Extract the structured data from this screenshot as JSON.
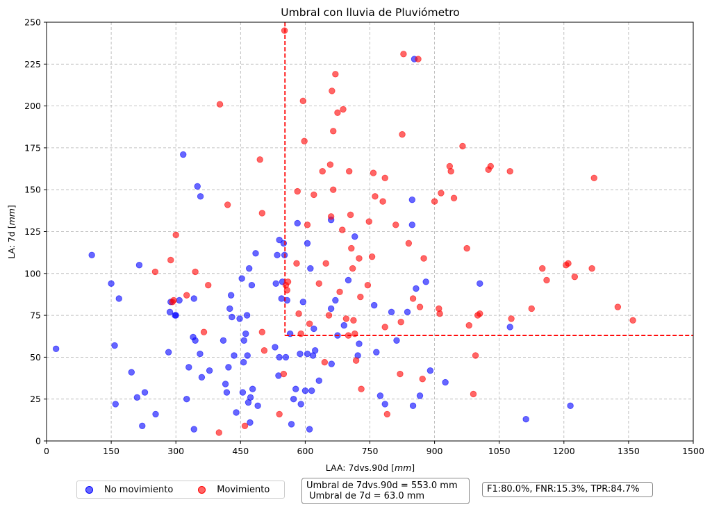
{
  "chart_data": {
    "type": "scatter",
    "title": "Umbral con lluvia de Pluviómetro",
    "xlabel": "LAA: 7dvs.90d [mm]",
    "ylabel": "LA: 7d [mm]",
    "xlim": [
      0,
      1500
    ],
    "ylim": [
      0,
      250
    ],
    "xticks": [
      0,
      150,
      300,
      450,
      600,
      750,
      900,
      1050,
      1200,
      1350,
      1500
    ],
    "yticks": [
      0,
      25,
      50,
      75,
      100,
      125,
      150,
      175,
      200,
      225,
      250
    ],
    "grid": true,
    "legend_position": "bottom-left",
    "thresholds": {
      "x": 553.0,
      "y": 63.0,
      "color": "#ff0000"
    },
    "series": [
      {
        "name": "No movimiento",
        "color": "#0000ff",
        "points": [
          [
            22,
            55
          ],
          [
            105,
            111
          ],
          [
            150,
            94
          ],
          [
            158,
            57
          ],
          [
            160,
            22
          ],
          [
            168,
            85
          ],
          [
            197,
            41
          ],
          [
            210,
            26
          ],
          [
            215,
            105
          ],
          [
            222,
            9
          ],
          [
            228,
            29
          ],
          [
            253,
            16
          ],
          [
            283,
            53
          ],
          [
            286,
            77
          ],
          [
            288,
            83
          ],
          [
            298,
            75
          ],
          [
            300,
            75
          ],
          [
            308,
            84
          ],
          [
            317,
            171
          ],
          [
            325,
            25
          ],
          [
            330,
            44
          ],
          [
            340,
            62
          ],
          [
            342,
            7
          ],
          [
            342,
            85
          ],
          [
            345,
            60
          ],
          [
            350,
            152
          ],
          [
            356,
            52
          ],
          [
            357,
            146
          ],
          [
            360,
            38
          ],
          [
            378,
            42
          ],
          [
            410,
            60
          ],
          [
            415,
            34
          ],
          [
            418,
            29
          ],
          [
            422,
            44
          ],
          [
            425,
            79
          ],
          [
            428,
            87
          ],
          [
            430,
            74
          ],
          [
            435,
            51
          ],
          [
            440,
            17
          ],
          [
            448,
            73
          ],
          [
            453,
            97
          ],
          [
            455,
            29
          ],
          [
            457,
            47
          ],
          [
            458,
            60
          ],
          [
            462,
            64
          ],
          [
            465,
            75
          ],
          [
            466,
            51
          ],
          [
            468,
            23
          ],
          [
            470,
            103
          ],
          [
            472,
            11
          ],
          [
            473,
            26
          ],
          [
            476,
            93
          ],
          [
            478,
            31
          ],
          [
            485,
            112
          ],
          [
            490,
            21
          ],
          [
            530,
            56
          ],
          [
            532,
            94
          ],
          [
            535,
            111
          ],
          [
            538,
            39
          ],
          [
            540,
            50
          ],
          [
            540,
            120
          ],
          [
            545,
            85
          ],
          [
            547,
            95
          ],
          [
            550,
            118
          ],
          [
            552,
            111
          ],
          [
            555,
            50
          ],
          [
            558,
            84
          ],
          [
            565,
            64
          ],
          [
            568,
            10
          ],
          [
            573,
            25
          ],
          [
            578,
            31
          ],
          [
            582,
            130
          ],
          [
            588,
            52
          ],
          [
            590,
            22
          ],
          [
            595,
            83
          ],
          [
            600,
            30
          ],
          [
            605,
            52
          ],
          [
            605,
            118
          ],
          [
            610,
            7
          ],
          [
            612,
            103
          ],
          [
            615,
            30
          ],
          [
            618,
            51
          ],
          [
            620,
            67
          ],
          [
            623,
            54
          ],
          [
            632,
            36
          ],
          [
            660,
            132
          ],
          [
            660,
            79
          ],
          [
            661,
            46
          ],
          [
            670,
            84
          ],
          [
            675,
            63
          ],
          [
            690,
            69
          ],
          [
            700,
            96
          ],
          [
            715,
            122
          ],
          [
            722,
            51
          ],
          [
            725,
            58
          ],
          [
            760,
            81
          ],
          [
            765,
            53
          ],
          [
            774,
            27
          ],
          [
            785,
            22
          ],
          [
            800,
            77
          ],
          [
            812,
            60
          ],
          [
            837,
            77
          ],
          [
            848,
            129
          ],
          [
            848,
            144
          ],
          [
            850,
            21
          ],
          [
            853,
            228
          ],
          [
            857,
            91
          ],
          [
            866,
            27
          ],
          [
            880,
            95
          ],
          [
            890,
            42
          ],
          [
            925,
            35
          ],
          [
            1005,
            94
          ],
          [
            1075,
            68
          ],
          [
            1112,
            13
          ],
          [
            1215,
            21
          ]
        ]
      },
      {
        "name": "Movimiento",
        "color": "#ff0000",
        "points": [
          [
            252,
            101
          ],
          [
            288,
            108
          ],
          [
            292,
            83
          ],
          [
            295,
            84
          ],
          [
            300,
            123
          ],
          [
            325,
            87
          ],
          [
            345,
            101
          ],
          [
            365,
            65
          ],
          [
            375,
            93
          ],
          [
            400,
            5
          ],
          [
            402,
            201
          ],
          [
            420,
            141
          ],
          [
            460,
            9
          ],
          [
            495,
            168
          ],
          [
            500,
            136
          ],
          [
            500,
            65
          ],
          [
            505,
            54
          ],
          [
            540,
            16
          ],
          [
            550,
            40
          ],
          [
            552,
            245
          ],
          [
            555,
            93
          ],
          [
            558,
            90
          ],
          [
            560,
            95
          ],
          [
            580,
            106
          ],
          [
            582,
            149
          ],
          [
            585,
            76
          ],
          [
            590,
            64
          ],
          [
            595,
            203
          ],
          [
            598,
            179
          ],
          [
            605,
            129
          ],
          [
            610,
            70
          ],
          [
            620,
            147
          ],
          [
            632,
            94
          ],
          [
            640,
            161
          ],
          [
            645,
            47
          ],
          [
            648,
            106
          ],
          [
            655,
            75
          ],
          [
            658,
            165
          ],
          [
            660,
            134
          ],
          [
            662,
            209
          ],
          [
            665,
            150
          ],
          [
            665,
            185
          ],
          [
            670,
            219
          ],
          [
            675,
            196
          ],
          [
            680,
            89
          ],
          [
            686,
            126
          ],
          [
            688,
            198
          ],
          [
            695,
            73
          ],
          [
            700,
            63
          ],
          [
            702,
            161
          ],
          [
            705,
            135
          ],
          [
            707,
            115
          ],
          [
            710,
            103
          ],
          [
            712,
            72
          ],
          [
            715,
            64
          ],
          [
            718,
            48
          ],
          [
            725,
            109
          ],
          [
            728,
            86
          ],
          [
            730,
            31
          ],
          [
            745,
            93
          ],
          [
            748,
            131
          ],
          [
            755,
            110
          ],
          [
            758,
            160
          ],
          [
            762,
            146
          ],
          [
            780,
            143
          ],
          [
            785,
            68
          ],
          [
            785,
            157
          ],
          [
            790,
            16
          ],
          [
            810,
            129
          ],
          [
            820,
            40
          ],
          [
            822,
            71
          ],
          [
            825,
            183
          ],
          [
            828,
            231
          ],
          [
            840,
            118
          ],
          [
            850,
            85
          ],
          [
            862,
            228
          ],
          [
            866,
            80
          ],
          [
            872,
            37
          ],
          [
            875,
            109
          ],
          [
            900,
            143
          ],
          [
            910,
            79
          ],
          [
            912,
            76
          ],
          [
            915,
            148
          ],
          [
            935,
            164
          ],
          [
            938,
            161
          ],
          [
            945,
            145
          ],
          [
            965,
            176
          ],
          [
            975,
            115
          ],
          [
            980,
            69
          ],
          [
            990,
            28
          ],
          [
            995,
            51
          ],
          [
            1000,
            75
          ],
          [
            1005,
            76
          ],
          [
            1025,
            162
          ],
          [
            1030,
            164
          ],
          [
            1075,
            161
          ],
          [
            1078,
            73
          ],
          [
            1125,
            79
          ],
          [
            1150,
            103
          ],
          [
            1160,
            96
          ],
          [
            1205,
            105
          ],
          [
            1210,
            106
          ],
          [
            1225,
            98
          ],
          [
            1265,
            103
          ],
          [
            1270,
            157
          ],
          [
            1325,
            80
          ],
          [
            1360,
            72
          ]
        ]
      }
    ]
  },
  "legend": {
    "no_mov_label": "No movimiento",
    "mov_label": "Movimiento"
  },
  "annotations": {
    "thresholds_text": "Umbral de 7dvs.90d = 553.0 mm\n Umbral de 7d = 63.0 mm",
    "metrics_text": "F1:80.0%, FNR:15.3%, TPR:84.7%"
  }
}
